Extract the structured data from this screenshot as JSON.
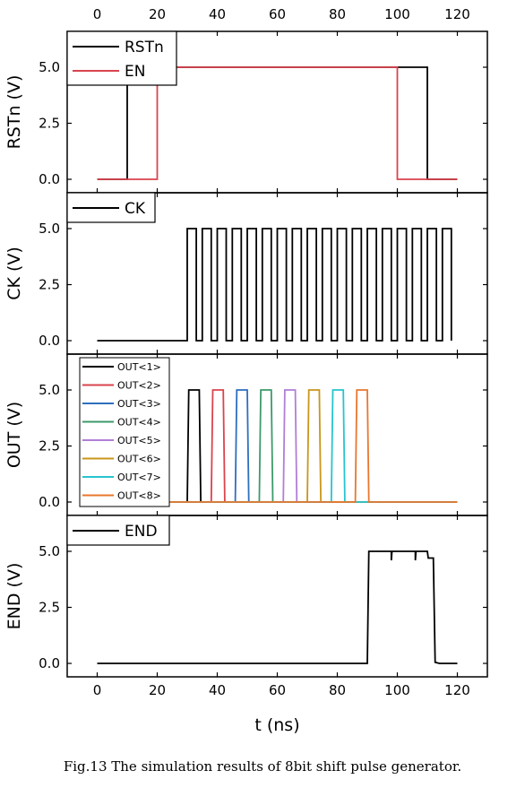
{
  "caption": "Fig.13 The simulation results of 8bit shift pulse generator.",
  "chart_data": {
    "type": "line",
    "xlabel": "t (ns)",
    "xlim": [
      -10,
      130
    ],
    "xticks": [
      0,
      20,
      40,
      60,
      80,
      100,
      120
    ],
    "xtick_labels": [
      "0",
      "20",
      "40",
      "60",
      "80",
      "100",
      "120"
    ],
    "colors": {
      "black": "#000000",
      "red": "#d9444d",
      "blue": "#2d6fbf",
      "green": "#3d9a6a",
      "purple": "#b07fd6",
      "gold": "#c8961b",
      "cyan": "#27c4cf",
      "orange": "#e8772e"
    },
    "panels": [
      {
        "id": "rstn",
        "ylabel": "RSTn (V)",
        "ylim": [
          -0.6,
          6.6
        ],
        "yticks": [
          0,
          2.5,
          5
        ],
        "ytick_labels": [
          "0.0",
          "2.5",
          "5.0"
        ],
        "legend_small": false,
        "series": [
          {
            "name": "RSTn",
            "color": "#000000",
            "points": [
              [
                0,
                0
              ],
              [
                10,
                0
              ],
              [
                10,
                5
              ],
              [
                110,
                5
              ],
              [
                110,
                0
              ],
              [
                120,
                0
              ]
            ]
          },
          {
            "name": "EN",
            "color": "#d9444d",
            "points": [
              [
                0,
                0
              ],
              [
                20,
                0
              ],
              [
                20,
                5
              ],
              [
                100,
                5
              ],
              [
                100,
                0
              ],
              [
                120,
                0
              ]
            ]
          }
        ]
      },
      {
        "id": "ck",
        "ylabel": "CK (V)",
        "ylim": [
          -0.6,
          6.6
        ],
        "yticks": [
          0,
          2.5,
          5
        ],
        "ytick_labels": [
          "0.0",
          "2.5",
          "5.0"
        ],
        "legend_small": false,
        "series": [
          {
            "name": "CK",
            "color": "#000000",
            "points": [
              [
                0,
                0
              ],
              [
                30,
                0
              ],
              [
                30,
                5
              ],
              [
                33,
                5
              ],
              [
                33,
                0
              ],
              [
                35,
                0
              ],
              [
                35,
                5
              ],
              [
                38,
                5
              ],
              [
                38,
                0
              ],
              [
                40,
                0
              ],
              [
                40,
                5
              ],
              [
                43,
                5
              ],
              [
                43,
                0
              ],
              [
                45,
                0
              ],
              [
                45,
                5
              ],
              [
                48,
                5
              ],
              [
                48,
                0
              ],
              [
                50,
                0
              ],
              [
                50,
                5
              ],
              [
                53,
                5
              ],
              [
                53,
                0
              ],
              [
                55,
                0
              ],
              [
                55,
                5
              ],
              [
                58,
                5
              ],
              [
                58,
                0
              ],
              [
                60,
                0
              ],
              [
                60,
                5
              ],
              [
                63,
                5
              ],
              [
                63,
                0
              ],
              [
                65,
                0
              ],
              [
                65,
                5
              ],
              [
                68,
                5
              ],
              [
                68,
                0
              ],
              [
                70,
                0
              ],
              [
                70,
                5
              ],
              [
                73,
                5
              ],
              [
                73,
                0
              ],
              [
                75,
                0
              ],
              [
                75,
                5
              ],
              [
                78,
                5
              ],
              [
                78,
                0
              ],
              [
                80,
                0
              ],
              [
                80,
                5
              ],
              [
                83,
                5
              ],
              [
                83,
                0
              ],
              [
                85,
                0
              ],
              [
                85,
                5
              ],
              [
                88,
                5
              ],
              [
                88,
                0
              ],
              [
                90,
                0
              ],
              [
                90,
                5
              ],
              [
                93,
                5
              ],
              [
                93,
                0
              ],
              [
                95,
                0
              ],
              [
                95,
                5
              ],
              [
                98,
                5
              ],
              [
                98,
                0
              ],
              [
                100,
                0
              ],
              [
                100,
                5
              ],
              [
                103,
                5
              ],
              [
                103,
                0
              ],
              [
                105,
                0
              ],
              [
                105,
                5
              ],
              [
                108,
                5
              ],
              [
                108,
                0
              ],
              [
                110,
                0
              ],
              [
                110,
                5
              ],
              [
                113,
                5
              ],
              [
                113,
                0
              ],
              [
                115,
                0
              ],
              [
                115,
                5
              ],
              [
                118,
                5
              ],
              [
                118,
                0
              ],
              [
                118,
                0
              ]
            ]
          }
        ]
      },
      {
        "id": "out",
        "ylabel": "OUT (V)",
        "ylim": [
          -0.6,
          6.6
        ],
        "yticks": [
          0,
          2.5,
          5
        ],
        "ytick_labels": [
          "0.0",
          "2.5",
          "5.0"
        ],
        "legend_small": true,
        "series": [
          {
            "name": "OUT<1>",
            "color": "#000000",
            "points": [
              [
                0,
                0
              ],
              [
                30,
                0
              ],
              [
                30.5,
                5
              ],
              [
                34,
                5
              ],
              [
                34.5,
                0
              ],
              [
                120,
                0
              ]
            ]
          },
          {
            "name": "OUT<2>",
            "color": "#d9444d",
            "points": [
              [
                0,
                0
              ],
              [
                38,
                0
              ],
              [
                38.5,
                5
              ],
              [
                42,
                5
              ],
              [
                42.5,
                0
              ],
              [
                120,
                0
              ]
            ]
          },
          {
            "name": "OUT<3>",
            "color": "#2d6fbf",
            "points": [
              [
                0,
                0
              ],
              [
                46,
                0
              ],
              [
                46.5,
                5
              ],
              [
                50,
                5
              ],
              [
                50.5,
                0
              ],
              [
                120,
                0
              ]
            ]
          },
          {
            "name": "OUT<4>",
            "color": "#3d9a6a",
            "points": [
              [
                0,
                0
              ],
              [
                54,
                0
              ],
              [
                54.5,
                5
              ],
              [
                58,
                5
              ],
              [
                58.5,
                0
              ],
              [
                120,
                0
              ]
            ]
          },
          {
            "name": "OUT<5>",
            "color": "#b07fd6",
            "points": [
              [
                0,
                0
              ],
              [
                62,
                0
              ],
              [
                62.5,
                5
              ],
              [
                66,
                5
              ],
              [
                66.5,
                0
              ],
              [
                120,
                0
              ]
            ]
          },
          {
            "name": "OUT<6>",
            "color": "#c8961b",
            "points": [
              [
                0,
                0
              ],
              [
                70,
                0
              ],
              [
                70.5,
                5
              ],
              [
                74,
                5
              ],
              [
                74.5,
                0
              ],
              [
                120,
                0
              ]
            ]
          },
          {
            "name": "OUT<7>",
            "color": "#27c4cf",
            "points": [
              [
                0,
                0
              ],
              [
                78,
                0
              ],
              [
                78.5,
                5
              ],
              [
                82,
                5
              ],
              [
                82.5,
                0
              ],
              [
                120,
                0
              ]
            ]
          },
          {
            "name": "OUT<8>",
            "color": "#e8772e",
            "points": [
              [
                0,
                0
              ],
              [
                86,
                0
              ],
              [
                86.5,
                5
              ],
              [
                90,
                5
              ],
              [
                90.5,
                0
              ],
              [
                120,
                0
              ]
            ]
          }
        ]
      },
      {
        "id": "end",
        "ylabel": "END (V)",
        "ylim": [
          -0.6,
          6.6
        ],
        "yticks": [
          0,
          2.5,
          5
        ],
        "ytick_labels": [
          "0.0",
          "2.5",
          "5.0"
        ],
        "legend_small": false,
        "series": [
          {
            "name": "END",
            "color": "#000000",
            "points": [
              [
                0,
                0
              ],
              [
                90,
                0
              ],
              [
                90.5,
                5
              ],
              [
                98,
                5
              ],
              [
                98,
                4.6
              ],
              [
                98.2,
                5
              ],
              [
                106,
                5
              ],
              [
                106,
                4.6
              ],
              [
                106.2,
                5
              ],
              [
                110,
                5
              ],
              [
                110.3,
                4.7
              ],
              [
                112,
                4.7
              ],
              [
                112.6,
                0.05
              ],
              [
                114,
                0
              ],
              [
                120,
                0
              ]
            ]
          }
        ]
      }
    ]
  }
}
